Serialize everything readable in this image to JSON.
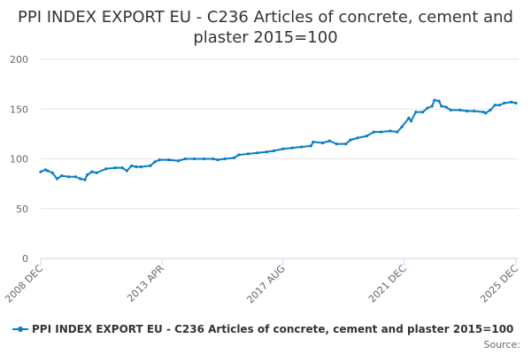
{
  "chart_data": {
    "type": "line",
    "title": "PPI INDEX EXPORT EU - C236 Articles of concrete, cement and plaster 2015=100",
    "xlabel": "",
    "ylabel": "",
    "ylim": [
      0,
      200
    ],
    "yticks": [
      0,
      50,
      100,
      150,
      200
    ],
    "xlim": [
      "2008-12",
      "2025-12"
    ],
    "xticks": [
      {
        "date": "2008-12",
        "label": "2008 DEC"
      },
      {
        "date": "2013-04",
        "label": "2013 APR"
      },
      {
        "date": "2017-08",
        "label": "2017 AUG"
      },
      {
        "date": "2021-12",
        "label": "2021 DEC"
      },
      {
        "date": "2025-12",
        "label": "2025 DEC"
      }
    ],
    "grid": true,
    "legend_position": "bottom",
    "color": "#0a7dc3",
    "series": [
      {
        "name": "PPI INDEX EXPORT EU - C236 Articles of concrete, cement and plaster 2015=100",
        "points": [
          [
            "2008-12",
            87
          ],
          [
            "2009-02",
            89
          ],
          [
            "2009-03",
            88
          ],
          [
            "2009-05",
            86
          ],
          [
            "2009-07",
            80
          ],
          [
            "2009-09",
            83
          ],
          [
            "2009-12",
            82
          ],
          [
            "2010-03",
            82
          ],
          [
            "2010-05",
            80
          ],
          [
            "2010-07",
            79
          ],
          [
            "2010-08",
            84
          ],
          [
            "2010-10",
            87
          ],
          [
            "2010-12",
            86
          ],
          [
            "2011-04",
            90
          ],
          [
            "2011-08",
            91
          ],
          [
            "2011-11",
            91
          ],
          [
            "2012-01",
            88
          ],
          [
            "2012-03",
            93
          ],
          [
            "2012-05",
            92
          ],
          [
            "2012-07",
            92
          ],
          [
            "2012-11",
            93
          ],
          [
            "2013-01",
            97
          ],
          [
            "2013-03",
            99
          ],
          [
            "2013-07",
            99
          ],
          [
            "2013-11",
            98
          ],
          [
            "2014-02",
            100
          ],
          [
            "2014-06",
            100
          ],
          [
            "2014-10",
            100
          ],
          [
            "2015-02",
            100
          ],
          [
            "2015-04",
            99
          ],
          [
            "2015-07",
            100
          ],
          [
            "2015-11",
            101
          ],
          [
            "2016-01",
            104
          ],
          [
            "2016-05",
            105
          ],
          [
            "2016-09",
            106
          ],
          [
            "2017-01",
            107
          ],
          [
            "2017-04",
            108
          ],
          [
            "2017-08",
            110
          ],
          [
            "2017-12",
            111
          ],
          [
            "2018-04",
            112
          ],
          [
            "2018-08",
            113
          ],
          [
            "2018-09",
            117
          ],
          [
            "2019-01",
            116
          ],
          [
            "2019-04",
            118
          ],
          [
            "2019-07",
            115
          ],
          [
            "2019-11",
            115
          ],
          [
            "2020-01",
            119
          ],
          [
            "2020-04",
            121
          ],
          [
            "2020-08",
            123
          ],
          [
            "2020-11",
            127
          ],
          [
            "2021-02",
            127
          ],
          [
            "2021-06",
            128
          ],
          [
            "2021-09",
            127
          ],
          [
            "2021-11",
            132
          ],
          [
            "2022-02",
            141
          ],
          [
            "2022-03",
            138
          ],
          [
            "2022-05",
            147
          ],
          [
            "2022-08",
            147
          ],
          [
            "2022-10",
            151
          ],
          [
            "2022-12",
            153
          ],
          [
            "2023-01",
            159
          ],
          [
            "2023-03",
            158
          ],
          [
            "2023-04",
            153
          ],
          [
            "2023-06",
            152
          ],
          [
            "2023-08",
            149
          ],
          [
            "2023-12",
            149
          ],
          [
            "2024-03",
            148
          ],
          [
            "2024-06",
            148
          ],
          [
            "2024-10",
            147
          ],
          [
            "2024-11",
            146
          ],
          [
            "2025-01",
            149
          ],
          [
            "2025-03",
            154
          ],
          [
            "2025-05",
            154
          ],
          [
            "2025-07",
            156
          ],
          [
            "2025-10",
            157
          ],
          [
            "2025-12",
            156
          ]
        ]
      }
    ]
  },
  "legend": {
    "label": "PPI INDEX EXPORT EU - C236 Articles of concrete, cement and plaster 2015=100"
  },
  "source_label": "Source:"
}
